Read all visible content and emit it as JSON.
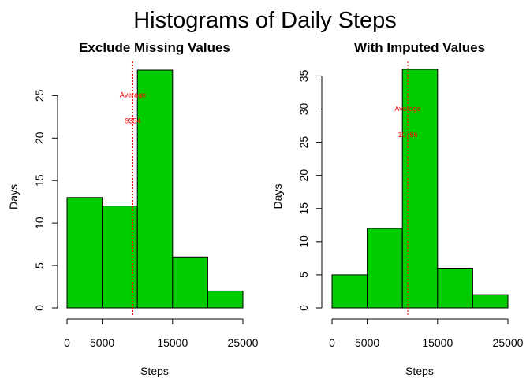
{
  "figure": {
    "title": "Histograms of Daily Steps",
    "bar_color": "#00CC00",
    "bar_border": "#000000",
    "marker_color": "#FF0000"
  },
  "chart_data": [
    {
      "type": "bar",
      "title": "Exclude Missing Values",
      "xlabel": "Steps",
      "ylabel": "Days",
      "bins": [
        [
          0,
          5000
        ],
        [
          5000,
          10000
        ],
        [
          10000,
          15000
        ],
        [
          15000,
          20000
        ],
        [
          20000,
          25000
        ]
      ],
      "values": [
        13,
        12,
        28,
        6,
        2
      ],
      "xlim": [
        0,
        25000
      ],
      "ylim": [
        0,
        28
      ],
      "x_ticks": [
        0,
        5000,
        15000,
        25000
      ],
      "x_tick_labels": [
        "0",
        "5000",
        "15000",
        "25000"
      ],
      "y_ticks": [
        0,
        5,
        10,
        15,
        20,
        25
      ],
      "y_tick_labels": [
        "0",
        "5",
        "10",
        "15",
        "20",
        "25"
      ],
      "mean_line": {
        "x": 9354,
        "label": "Average",
        "value_label": "9354"
      },
      "grid": false,
      "legend": "none"
    },
    {
      "type": "bar",
      "title": "With Imputed Values",
      "xlabel": "Steps",
      "ylabel": "Days",
      "bins": [
        [
          0,
          5000
        ],
        [
          5000,
          10000
        ],
        [
          10000,
          15000
        ],
        [
          15000,
          20000
        ],
        [
          20000,
          25000
        ]
      ],
      "values": [
        5,
        12,
        36,
        6,
        2
      ],
      "xlim": [
        0,
        25000
      ],
      "ylim": [
        0,
        36
      ],
      "x_ticks": [
        0,
        5000,
        15000,
        25000
      ],
      "x_tick_labels": [
        "0",
        "5000",
        "15000",
        "25000"
      ],
      "y_ticks": [
        0,
        5,
        10,
        15,
        20,
        25,
        30,
        35
      ],
      "y_tick_labels": [
        "0",
        "5",
        "10",
        "15",
        "20",
        "25",
        "30",
        "35"
      ],
      "mean_line": {
        "x": 10766,
        "label": "Average",
        "value_label": "10766"
      },
      "grid": false,
      "legend": "none"
    }
  ]
}
